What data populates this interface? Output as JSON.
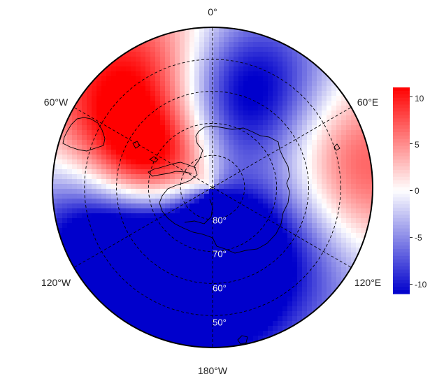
{
  "map": {
    "projection": "south-polar-stereographic",
    "lon_labels": [
      "0°",
      "60°E",
      "120°E",
      "180°W",
      "120°W",
      "60°W"
    ],
    "lat_labels": [
      "80°",
      "70°",
      "60°",
      "50°"
    ],
    "grid": "dashed",
    "coastlines": true,
    "field_anomalies": [
      {
        "lon": -60,
        "lat": -58,
        "value": 10,
        "sigma_deg": 20
      },
      {
        "lon": -75,
        "lat": -68,
        "value": 9,
        "sigma_deg": 12
      },
      {
        "lon": -30,
        "lat": -45,
        "value": 6,
        "sigma_deg": 18
      },
      {
        "lon": 25,
        "lat": -52,
        "value": -9,
        "sigma_deg": 18
      },
      {
        "lon": 10,
        "lat": -63,
        "value": -6,
        "sigma_deg": 14
      },
      {
        "lon": 70,
        "lat": -45,
        "value": 5,
        "sigma_deg": 16
      },
      {
        "lon": 95,
        "lat": -45,
        "value": 6,
        "sigma_deg": 16
      },
      {
        "lon": 140,
        "lat": -55,
        "value": -10,
        "sigma_deg": 22
      },
      {
        "lon": 180,
        "lat": -55,
        "value": -9,
        "sigma_deg": 20
      },
      {
        "lon": -150,
        "lat": -58,
        "value": -10,
        "sigma_deg": 20
      },
      {
        "lon": -115,
        "lat": -57,
        "value": -9,
        "sigma_deg": 18
      },
      {
        "lon": -105,
        "lat": -45,
        "value": -5,
        "sigma_deg": 20
      },
      {
        "lon": 150,
        "lat": -45,
        "value": 4,
        "sigma_deg": 14
      },
      {
        "lon": -170,
        "lat": -45,
        "value": 3,
        "sigma_deg": 14
      },
      {
        "lon": 100,
        "lat": -80,
        "value": -2,
        "sigma_deg": 15
      },
      {
        "lon": 160,
        "lat": -78,
        "value": -4,
        "sigma_deg": 10
      }
    ]
  },
  "colorbar": {
    "min": -11,
    "max": 11,
    "ticks": [
      "10",
      "5",
      "0",
      "-5",
      "-10"
    ],
    "tick_values": [
      10,
      5,
      0,
      -5,
      -10
    ],
    "colors": {
      "low": "#0000cc",
      "mid": "#ffffff",
      "high": "#ff0000"
    }
  }
}
